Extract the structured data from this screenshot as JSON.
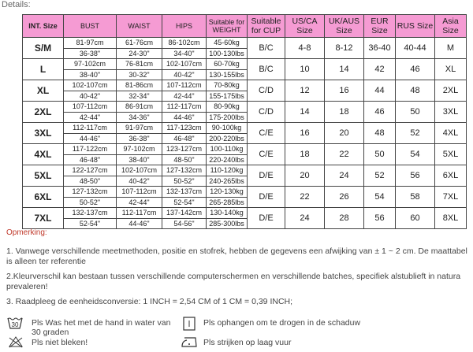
{
  "details_label": "Details:",
  "headers": [
    "INT. Size",
    "BUST",
    "WAIST",
    "HIPS",
    "Suitable for WEIGHT",
    "Suitable for CUP",
    "US/CA Size",
    "UK/AUS Size",
    "EUR Size",
    "RUS Size",
    "Asia Size"
  ],
  "rows": [
    {
      "size": "S/M",
      "bust": [
        "81-97cm",
        "36-38\""
      ],
      "waist": [
        "61-76cm",
        "24-30\""
      ],
      "hips": [
        "86-102cm",
        "34-40\""
      ],
      "weight": [
        "45-60kg",
        "100-130lbs"
      ],
      "cup": "B/C",
      "us": "4-8",
      "uk": "8-12",
      "eur": "36-40",
      "rus": "40-44",
      "asia": "M"
    },
    {
      "size": "L",
      "bust": [
        "97-102cm",
        "38-40\""
      ],
      "waist": [
        "76-81cm",
        "30-32\""
      ],
      "hips": [
        "102-107cm",
        "40-42\""
      ],
      "weight": [
        "60-70kg",
        "130-155lbs"
      ],
      "cup": "B/C",
      "us": "10",
      "uk": "14",
      "eur": "42",
      "rus": "46",
      "asia": "XL"
    },
    {
      "size": "XL",
      "bust": [
        "102-107cm",
        "40-42\""
      ],
      "waist": [
        "81-86cm",
        "32-34\""
      ],
      "hips": [
        "107-112cm",
        "42-44\""
      ],
      "weight": [
        "70-80kg",
        "155-175lbs"
      ],
      "cup": "C/D",
      "us": "12",
      "uk": "16",
      "eur": "44",
      "rus": "48",
      "asia": "2XL"
    },
    {
      "size": "2XL",
      "bust": [
        "107-112cm",
        "42-44\""
      ],
      "waist": [
        "86-91cm",
        "34-36\""
      ],
      "hips": [
        "112-117cm",
        "44-46\""
      ],
      "weight": [
        "80-90kg",
        "175-200lbs"
      ],
      "cup": "C/D",
      "us": "14",
      "uk": "18",
      "eur": "46",
      "rus": "50",
      "asia": "3XL"
    },
    {
      "size": "3XL",
      "bust": [
        "112-117cm",
        "44-46\""
      ],
      "waist": [
        "91-97cm",
        "36-38\""
      ],
      "hips": [
        "117-123cm",
        "46-48\""
      ],
      "weight": [
        "90-100kg",
        "200-220lbs"
      ],
      "cup": "C/E",
      "us": "16",
      "uk": "20",
      "eur": "48",
      "rus": "52",
      "asia": "4XL"
    },
    {
      "size": "4XL",
      "bust": [
        "117-122cm",
        "46-48\""
      ],
      "waist": [
        "97-102cm",
        "38-40\""
      ],
      "hips": [
        "123-127cm",
        "48-50\""
      ],
      "weight": [
        "100-110kg",
        "220-240lbs"
      ],
      "cup": "C/E",
      "us": "18",
      "uk": "22",
      "eur": "50",
      "rus": "54",
      "asia": "5XL"
    },
    {
      "size": "5XL",
      "bust": [
        "122-127cm",
        "48-50\""
      ],
      "waist": [
        "102-107cm",
        "40-42\""
      ],
      "hips": [
        "127-132cm",
        "50-52\""
      ],
      "weight": [
        "110-120kg",
        "240-265lbs"
      ],
      "cup": "D/E",
      "us": "20",
      "uk": "24",
      "eur": "52",
      "rus": "56",
      "asia": "6XL"
    },
    {
      "size": "6XL",
      "bust": [
        "127-132cm",
        "50-52\""
      ],
      "waist": [
        "107-112cm",
        "42-44\""
      ],
      "hips": [
        "132-137cm",
        "52-54\""
      ],
      "weight": [
        "120-130kg",
        "265-285lbs"
      ],
      "cup": "D/E",
      "us": "22",
      "uk": "26",
      "eur": "54",
      "rus": "58",
      "asia": "7XL"
    },
    {
      "size": "7XL",
      "bust": [
        "132-137cm",
        "52-54\""
      ],
      "waist": [
        "112-117cm",
        "44-46\""
      ],
      "hips": [
        "137-142cm",
        "54-56\""
      ],
      "weight": [
        "130-140kg",
        "285-300lbs"
      ],
      "cup": "D/E",
      "us": "24",
      "uk": "28",
      "eur": "56",
      "rus": "60",
      "asia": "8XL"
    }
  ],
  "notes": {
    "title": "Opmerking:",
    "items": [
      "1. Vanwege verschillende meetmethoden, positie en stofrek, hebben de gegevens een afwijking van ± 1 ~ 2 cm. De maattabel is alleen ter referentie",
      "2.Kleurverschil kan bestaan tussen verschillende computerschermen en verschillende batches, specifiek alstublieft in natura prevaleren!",
      "3. Raadpleeg de eenheidsconversie: 1 INCH = 2,54 CM of 1 CM = 0,39 INCH;"
    ]
  },
  "care": [
    {
      "icon": "hand-wash-30-icon",
      "text": "Pls Was het met de hand in water van 30 graden"
    },
    {
      "icon": "hang-dry-icon",
      "text": "Pls ophangen om te drogen in de schaduw"
    },
    {
      "icon": "no-bleach-icon",
      "text": "Pls niet bleken!"
    },
    {
      "icon": "iron-low-icon",
      "text": "Pls strijken op laag vuur"
    }
  ],
  "colors": {
    "header": "#f59bd3",
    "note_title": "#c0392b"
  }
}
